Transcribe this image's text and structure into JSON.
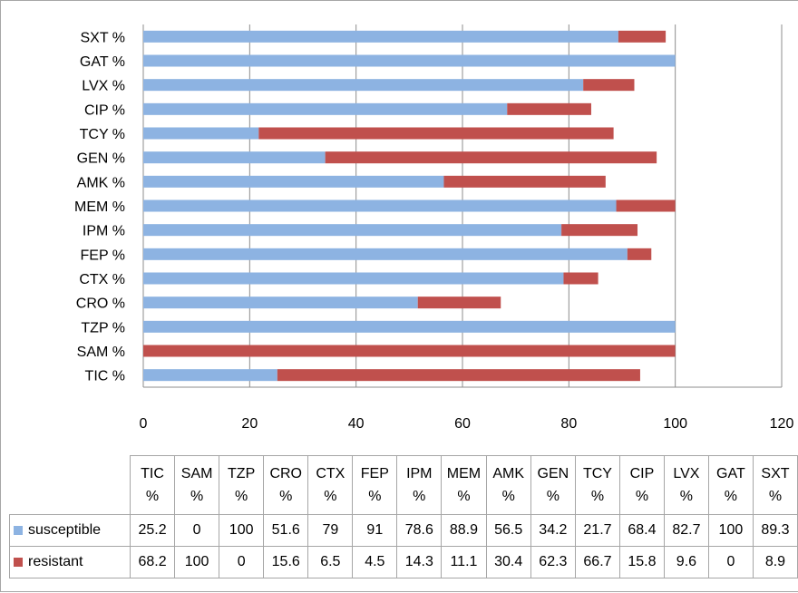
{
  "chart_data": {
    "type": "bar",
    "orientation": "horizontal",
    "stacked": true,
    "categories": [
      "TIC %",
      "SAM %",
      "TZP %",
      "CRO %",
      "CTX %",
      "FEP %",
      "IPM %",
      "MEM %",
      "AMK %",
      "GEN %",
      "TCY %",
      "CIP %",
      "LVX %",
      "GAT %",
      "SXT %"
    ],
    "series": [
      {
        "name": "susceptible",
        "color": "#8db3e2",
        "values": [
          25.2,
          0,
          100,
          51.6,
          79,
          91,
          78.6,
          88.9,
          56.5,
          34.2,
          21.7,
          68.4,
          82.7,
          100,
          89.3
        ]
      },
      {
        "name": "resistant",
        "color": "#c0504d",
        "values": [
          68.2,
          100,
          0,
          15.6,
          6.5,
          4.5,
          14.3,
          11.1,
          30.4,
          62.3,
          66.7,
          15.8,
          9.6,
          0,
          8.9
        ]
      }
    ],
    "xlim": [
      0,
      120
    ],
    "xticks": [
      "0",
      "20",
      "40",
      "60",
      "80",
      "100",
      "120"
    ],
    "grid": true,
    "data_table": true,
    "table_header_lines": [
      [
        "TIC",
        "%"
      ],
      [
        "SAM",
        "%"
      ],
      [
        "TZP",
        "%"
      ],
      [
        "CRO",
        "%"
      ],
      [
        "CTX",
        "%"
      ],
      [
        "FEP",
        "%"
      ],
      [
        "IPM",
        "%"
      ],
      [
        "MEM",
        "%"
      ],
      [
        "AMK",
        "%"
      ],
      [
        "GEN",
        "%"
      ],
      [
        "TCY",
        "%"
      ],
      [
        "CIP",
        "%"
      ],
      [
        "LVX",
        "%"
      ],
      [
        "GAT",
        "%"
      ],
      [
        "SXT",
        "%"
      ]
    ],
    "table_rows": [
      {
        "label": "susceptible",
        "cells": [
          "25.2",
          "0",
          "100",
          "51.6",
          "79",
          "91",
          "78.6",
          "88.9",
          "56.5",
          "34.2",
          "21.7",
          "68.4",
          "82.7",
          "100",
          "89.3"
        ]
      },
      {
        "label": "resistant",
        "cells": [
          "68.2",
          "100",
          "0",
          "15.6",
          "6.5",
          "4.5",
          "14.3",
          "11.1",
          "30.4",
          "62.3",
          "66.7",
          "15.8",
          "9.6",
          "0",
          "8.9"
        ]
      }
    ]
  }
}
